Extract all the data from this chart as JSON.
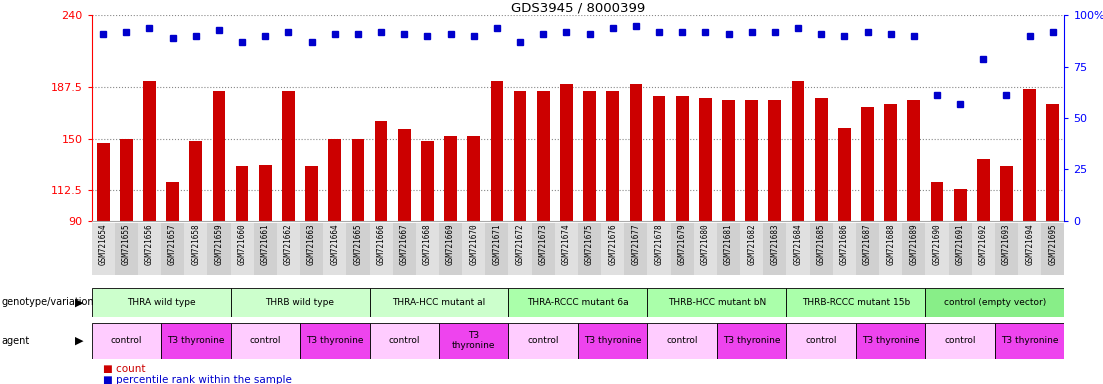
{
  "title": "GDS3945 / 8000399",
  "samples": [
    "GSM721654",
    "GSM721655",
    "GSM721656",
    "GSM721657",
    "GSM721658",
    "GSM721659",
    "GSM721660",
    "GSM721661",
    "GSM721662",
    "GSM721663",
    "GSM721664",
    "GSM721665",
    "GSM721666",
    "GSM721667",
    "GSM721668",
    "GSM721669",
    "GSM721670",
    "GSM721671",
    "GSM721672",
    "GSM721673",
    "GSM721674",
    "GSM721675",
    "GSM721676",
    "GSM721677",
    "GSM721678",
    "GSM721679",
    "GSM721680",
    "GSM721681",
    "GSM721682",
    "GSM721683",
    "GSM721684",
    "GSM721685",
    "GSM721686",
    "GSM721687",
    "GSM721688",
    "GSM721689",
    "GSM721690",
    "GSM721691",
    "GSM721692",
    "GSM721693",
    "GSM721694",
    "GSM721695"
  ],
  "counts": [
    147,
    150,
    192,
    118,
    148,
    185,
    130,
    131,
    185,
    130,
    150,
    150,
    163,
    157,
    148,
    152,
    152,
    192,
    185,
    185,
    190,
    185,
    185,
    190,
    181,
    181,
    180,
    178,
    178,
    178,
    192,
    180,
    158,
    173,
    175,
    178,
    118,
    113,
    135,
    130,
    186,
    175
  ],
  "percentile_ranks": [
    91,
    92,
    94,
    89,
    90,
    93,
    87,
    90,
    92,
    87,
    91,
    91,
    92,
    91,
    90,
    91,
    90,
    94,
    87,
    91,
    92,
    91,
    94,
    95,
    92,
    92,
    92,
    91,
    92,
    92,
    94,
    91,
    90,
    92,
    91,
    90,
    61,
    57,
    79,
    61,
    90,
    92
  ],
  "ylim_left": [
    90,
    240
  ],
  "yticks_left": [
    90,
    112.5,
    150,
    187.5,
    240
  ],
  "ytick_labels_left": [
    "90",
    "112.5",
    "150",
    "187.5",
    "240"
  ],
  "ylim_right": [
    0,
    100
  ],
  "yticks_right": [
    0,
    25,
    50,
    75,
    100
  ],
  "ytick_labels_right": [
    "0",
    "25",
    "50",
    "75",
    "100%"
  ],
  "bar_color": "#cc0000",
  "dot_color": "#0000cc",
  "genotype_groups": [
    {
      "label": "THRA wild type",
      "start": 0,
      "end": 6,
      "color": "#ccffcc"
    },
    {
      "label": "THRB wild type",
      "start": 6,
      "end": 12,
      "color": "#ccffcc"
    },
    {
      "label": "THRA-HCC mutant al",
      "start": 12,
      "end": 18,
      "color": "#ccffcc"
    },
    {
      "label": "THRA-RCCC mutant 6a",
      "start": 18,
      "end": 24,
      "color": "#aaffaa"
    },
    {
      "label": "THRB-HCC mutant bN",
      "start": 24,
      "end": 30,
      "color": "#aaffaa"
    },
    {
      "label": "THRB-RCCC mutant 15b",
      "start": 30,
      "end": 36,
      "color": "#aaffaa"
    },
    {
      "label": "control (empty vector)",
      "start": 36,
      "end": 42,
      "color": "#88ee88"
    }
  ],
  "agent_groups": [
    {
      "label": "control",
      "start": 0,
      "end": 3,
      "color": "#ffccff"
    },
    {
      "label": "T3 thyronine",
      "start": 3,
      "end": 6,
      "color": "#ee44ee"
    },
    {
      "label": "control",
      "start": 6,
      "end": 9,
      "color": "#ffccff"
    },
    {
      "label": "T3 thyronine",
      "start": 9,
      "end": 12,
      "color": "#ee44ee"
    },
    {
      "label": "control",
      "start": 12,
      "end": 15,
      "color": "#ffccff"
    },
    {
      "label": "T3\nthyronine",
      "start": 15,
      "end": 18,
      "color": "#ee44ee"
    },
    {
      "label": "control",
      "start": 18,
      "end": 21,
      "color": "#ffccff"
    },
    {
      "label": "T3 thyronine",
      "start": 21,
      "end": 24,
      "color": "#ee44ee"
    },
    {
      "label": "control",
      "start": 24,
      "end": 27,
      "color": "#ffccff"
    },
    {
      "label": "T3 thyronine",
      "start": 27,
      "end": 30,
      "color": "#ee44ee"
    },
    {
      "label": "control",
      "start": 30,
      "end": 33,
      "color": "#ffccff"
    },
    {
      "label": "T3 thyronine",
      "start": 33,
      "end": 36,
      "color": "#ee44ee"
    },
    {
      "label": "control",
      "start": 36,
      "end": 39,
      "color": "#ffccff"
    },
    {
      "label": "T3 thyronine",
      "start": 39,
      "end": 42,
      "color": "#ee44ee"
    }
  ],
  "legend_count_label": "count",
  "legend_pct_label": "percentile rank within the sample",
  "genotype_label": "genotype/variation",
  "agent_label": "agent",
  "grid_color": "#888888",
  "bg_color": "#f0f0f0"
}
